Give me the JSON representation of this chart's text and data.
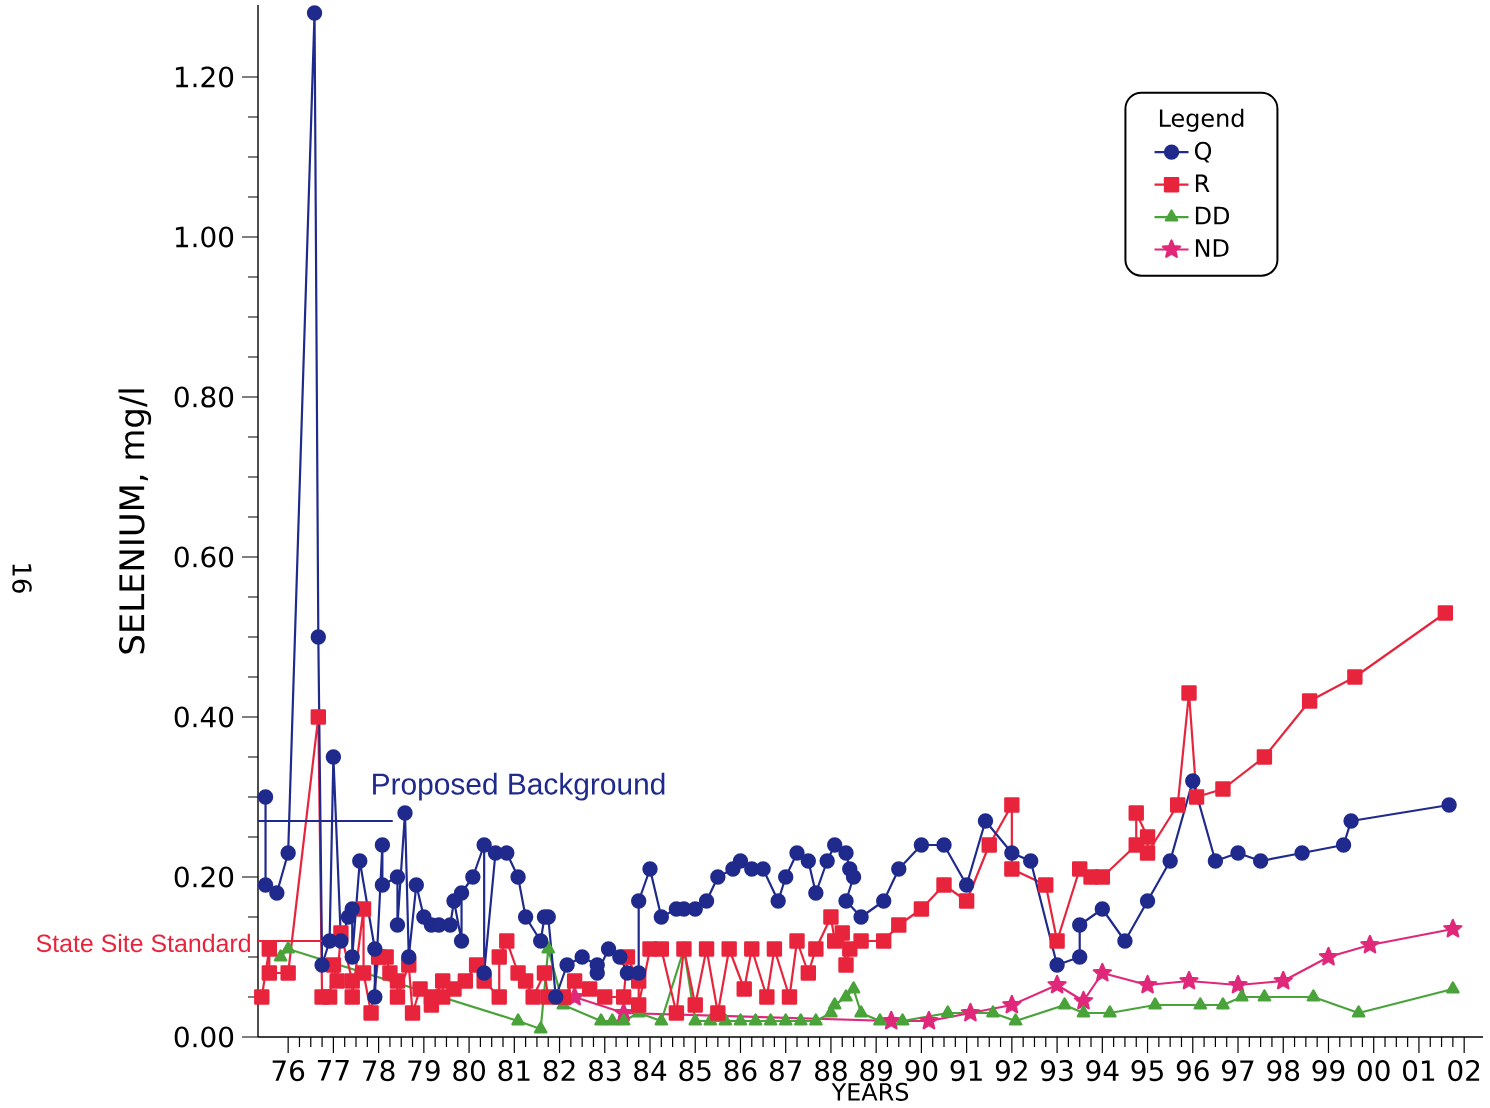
{
  "chart_data": {
    "type": "line",
    "ylabel": "SELENIUM, mg/l",
    "xlabel": "YEARS",
    "legend_title": "Legend",
    "legend": "top right",
    "annotations": [
      "16"
    ],
    "xlim": [
      "1975-11",
      "2002-12"
    ],
    "ylim": [
      0,
      1.29
    ],
    "xticks": [
      {
        "value": "1976-07",
        "label": "76"
      },
      {
        "value": "1977-07",
        "label": "77"
      },
      {
        "value": "1978-07",
        "label": "78"
      },
      {
        "value": "1979-07",
        "label": "79"
      },
      {
        "value": "1980-07",
        "label": "80"
      },
      {
        "value": "1981-07",
        "label": "81"
      },
      {
        "value": "1982-07",
        "label": "82"
      },
      {
        "value": "1983-07",
        "label": "83"
      },
      {
        "value": "1984-07",
        "label": "84"
      },
      {
        "value": "1985-07",
        "label": "85"
      },
      {
        "value": "1986-07",
        "label": "86"
      },
      {
        "value": "1987-07",
        "label": "87"
      },
      {
        "value": "1988-07",
        "label": "88"
      },
      {
        "value": "1989-07",
        "label": "89"
      },
      {
        "value": "1990-07",
        "label": "90"
      },
      {
        "value": "1991-07",
        "label": "91"
      },
      {
        "value": "1992-07",
        "label": "92"
      },
      {
        "value": "1993-07",
        "label": "93"
      },
      {
        "value": "1994-07",
        "label": "94"
      },
      {
        "value": "1995-07",
        "label": "95"
      },
      {
        "value": "1996-07",
        "label": "96"
      },
      {
        "value": "1997-07",
        "label": "97"
      },
      {
        "value": "1998-07",
        "label": "98"
      },
      {
        "value": "1999-07",
        "label": "99"
      },
      {
        "value": "2000-07",
        "label": "00"
      },
      {
        "value": "2001-07",
        "label": "01"
      },
      {
        "value": "2002-07",
        "label": "02"
      }
    ],
    "yticks": [
      {
        "value": 0,
        "label": "0.00"
      },
      {
        "value": 0.2,
        "label": "0.20"
      },
      {
        "value": 0.4,
        "label": "0.40"
      },
      {
        "value": 0.6,
        "label": "0.60"
      },
      {
        "value": 0.8,
        "label": "0.80"
      },
      {
        "value": 1.0,
        "label": "1.00"
      },
      {
        "value": 1.2,
        "label": "1.20"
      }
    ],
    "ref_lines": [
      {
        "axis": "y",
        "value": 0.27,
        "label": "Proposed Background",
        "color": "#1f2a8c"
      },
      {
        "axis": "y",
        "value": 0.12,
        "label": "State Site Standard",
        "color": "#e8243c"
      }
    ],
    "series": [
      {
        "name": "Q",
        "color": "#1f2a8c",
        "marker": "circle",
        "x": [
          "1976-01",
          "1976-01",
          "1976-04",
          "1976-07",
          "1977-02",
          "1977-03",
          "1977-04",
          "1977-06",
          "1977-07",
          "1977-09",
          "1977-11",
          "1977-12",
          "1977-12",
          "1978-02",
          "1978-06",
          "1978-06",
          "1978-08",
          "1978-08",
          "1978-12",
          "1978-12",
          "1979-02",
          "1979-03",
          "1979-05",
          "1979-07",
          "1979-09",
          "1979-11",
          "1980-02",
          "1980-03",
          "1980-05",
          "1980-05",
          "1980-08",
          "1980-11",
          "1980-11",
          "1981-02",
          "1981-05",
          "1981-08",
          "1981-10",
          "1982-02",
          "1982-03",
          "1982-04",
          "1982-06",
          "1982-09",
          "1983-01",
          "1983-05",
          "1983-05",
          "1983-08",
          "1983-11",
          "1984-01",
          "1984-04",
          "1984-04",
          "1984-07",
          "1984-10",
          "1985-02",
          "1985-04",
          "1985-07",
          "1985-10",
          "1986-01",
          "1986-05",
          "1986-07",
          "1986-10",
          "1987-01",
          "1987-05",
          "1987-07",
          "1987-10",
          "1988-01",
          "1988-03",
          "1988-06",
          "1988-08",
          "1988-11",
          "1988-12",
          "1989-01",
          "1988-11",
          "1989-03",
          "1989-09",
          "1990-01",
          "1990-07",
          "1991-01",
          "1991-07",
          "1991-12",
          "1992-07",
          "1992-12",
          "1993-07",
          "1994-01",
          "1994-01",
          "1994-07",
          "1995-01",
          "1995-07",
          "1996-01",
          "1996-07",
          "1997-01",
          "1997-07",
          "1998-01",
          "1998-12",
          "1999-11",
          "2000-01",
          "2002-03"
        ],
        "values": [
          0.3,
          0.19,
          0.18,
          0.23,
          1.28,
          0.5,
          0.09,
          0.12,
          0.35,
          0.12,
          0.15,
          0.16,
          0.1,
          0.22,
          0.11,
          0.05,
          0.24,
          0.19,
          0.2,
          0.14,
          0.28,
          0.1,
          0.19,
          0.15,
          0.14,
          0.14,
          0.14,
          0.17,
          0.12,
          0.18,
          0.2,
          0.24,
          0.08,
          0.23,
          0.23,
          0.2,
          0.15,
          0.12,
          0.15,
          0.15,
          0.05,
          0.09,
          0.1,
          0.09,
          0.08,
          0.11,
          0.1,
          0.08,
          0.08,
          0.17,
          0.21,
          0.15,
          0.16,
          0.16,
          0.16,
          0.17,
          0.2,
          0.21,
          0.22,
          0.21,
          0.21,
          0.17,
          0.2,
          0.23,
          0.22,
          0.18,
          0.22,
          0.24,
          0.23,
          0.21,
          0.2,
          0.17,
          0.15,
          0.17,
          0.21,
          0.24,
          0.24,
          0.19,
          0.27,
          0.23,
          0.22,
          0.09,
          0.1,
          0.14,
          0.16,
          0.12,
          0.17,
          0.22,
          0.32,
          0.22,
          0.23,
          0.22,
          0.23,
          0.24,
          0.27,
          0.29
        ]
      },
      {
        "name": "R",
        "color": "#e8243c",
        "marker": "square",
        "x": [
          "1975-12",
          "1976-02",
          "1976-02",
          "1976-07",
          "1977-03",
          "1977-04",
          "1977-06",
          "1977-07",
          "1977-08",
          "1977-09",
          "1977-12",
          "1977-12",
          "1978-03",
          "1978-03",
          "1978-05",
          "1978-07",
          "1978-09",
          "1978-10",
          "1978-12",
          "1978-12",
          "1979-03",
          "1979-04",
          "1979-06",
          "1979-09",
          "1979-09",
          "1979-12",
          "1979-12",
          "1980-03",
          "1980-06",
          "1980-09",
          "1980-11",
          "1981-03",
          "1981-03",
          "1981-05",
          "1981-08",
          "1981-10",
          "1981-12",
          "1982-03",
          "1982-04",
          "1982-08",
          "1982-11",
          "1983-03",
          "1983-07",
          "1983-12",
          "1984-01",
          "1984-04",
          "1984-04",
          "1984-07",
          "1984-10",
          "1985-02",
          "1985-04",
          "1985-07",
          "1985-10",
          "1986-01",
          "1986-04",
          "1986-08",
          "1986-10",
          "1987-02",
          "1987-04",
          "1987-08",
          "1987-10",
          "1988-01",
          "1988-03",
          "1988-07",
          "1988-08",
          "1988-10",
          "1988-11",
          "1988-12",
          "1989-03",
          "1989-09",
          "1990-01",
          "1990-07",
          "1991-01",
          "1991-07",
          "1992-01",
          "1992-07",
          "1992-07",
          "1993-04",
          "1993-07",
          "1994-01",
          "1994-04",
          "1994-07",
          "1995-04",
          "1995-04",
          "1995-07",
          "1995-07",
          "1996-03",
          "1996-06",
          "1996-08",
          "1997-03",
          "1998-02",
          "1999-02",
          "2000-02",
          "2002-02"
        ],
        "values": [
          0.05,
          0.11,
          0.08,
          0.08,
          0.4,
          0.05,
          0.05,
          0.09,
          0.07,
          0.13,
          0.07,
          0.05,
          0.16,
          0.08,
          0.03,
          0.1,
          0.1,
          0.08,
          0.07,
          0.05,
          0.09,
          0.03,
          0.06,
          0.05,
          0.04,
          0.07,
          0.05,
          0.06,
          0.07,
          0.09,
          0.07,
          0.05,
          0.1,
          0.12,
          0.08,
          0.07,
          0.05,
          0.08,
          0.05,
          0.05,
          0.07,
          0.06,
          0.05,
          0.05,
          0.1,
          0.07,
          0.04,
          0.11,
          0.11,
          0.03,
          0.11,
          0.04,
          0.11,
          0.03,
          0.11,
          0.06,
          0.11,
          0.05,
          0.11,
          0.05,
          0.12,
          0.08,
          0.11,
          0.15,
          0.12,
          0.13,
          0.09,
          0.11,
          0.12,
          0.12,
          0.14,
          0.16,
          0.19,
          0.17,
          0.24,
          0.29,
          0.21,
          0.19,
          0.12,
          0.21,
          0.2,
          0.2,
          0.24,
          0.28,
          0.25,
          0.23,
          0.29,
          0.43,
          0.3,
          0.31,
          0.35,
          0.42,
          0.45,
          0.53
        ]
      },
      {
        "name": "DD",
        "color": "#4aa33a",
        "marker": "triangle",
        "x": [
          "1976-05",
          "1976-07",
          "1981-08",
          "1982-02",
          "1982-04",
          "1982-08",
          "1983-06",
          "1983-09",
          "1983-12",
          "1984-04",
          "1984-10",
          "1985-04",
          "1985-07",
          "1985-11",
          "1986-03",
          "1986-07",
          "1986-11",
          "1987-03",
          "1987-07",
          "1987-11",
          "1988-03",
          "1988-07",
          "1988-08",
          "1988-11",
          "1989-01",
          "1989-03",
          "1989-08",
          "1990-02",
          "1991-02",
          "1992-02",
          "1992-08",
          "1993-09",
          "1994-02",
          "1994-09",
          "1995-09",
          "1996-09",
          "1997-03",
          "1997-08",
          "1998-02",
          "1999-03",
          "2000-03",
          "2002-04"
        ],
        "values": [
          0.1,
          0.11,
          0.02,
          0.01,
          0.11,
          0.04,
          0.02,
          0.02,
          0.02,
          0.03,
          0.02,
          0.11,
          0.02,
          0.02,
          0.02,
          0.02,
          0.02,
          0.02,
          0.02,
          0.02,
          0.02,
          0.03,
          0.04,
          0.05,
          0.06,
          0.03,
          0.02,
          0.02,
          0.03,
          0.03,
          0.02,
          0.04,
          0.03,
          0.03,
          0.04,
          0.04,
          0.04,
          0.05,
          0.05,
          0.05,
          0.03,
          0.06
        ]
      },
      {
        "name": "ND",
        "color": "#e0287a",
        "marker": "star",
        "x": [
          "1982-11",
          "1983-12",
          "1989-11",
          "1990-09",
          "1991-08",
          "1992-07",
          "1993-07",
          "1994-02",
          "1994-07",
          "1995-07",
          "1996-06",
          "1997-07",
          "1998-07",
          "1999-07",
          "2000-06",
          "2002-04"
        ],
        "values": [
          0.05,
          0.03,
          0.02,
          0.02,
          0.03,
          0.04,
          0.065,
          0.045,
          0.08,
          0.065,
          0.07,
          0.065,
          0.07,
          0.1,
          0.115,
          0.135
        ]
      }
    ]
  }
}
